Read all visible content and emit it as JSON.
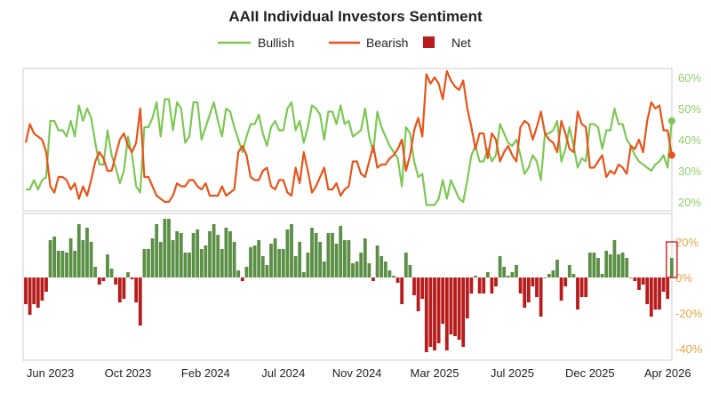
{
  "chart_data": {
    "type": "line+bar",
    "title": "AAII Individual Investors Sentiment",
    "legend": [
      "Bullish",
      "Bearish",
      "Net"
    ],
    "legend_placement": "top-center",
    "colors": {
      "bullish": "#7dc855",
      "bearish": "#e8541a",
      "net_pos": "#5b8f46",
      "net_neg": "#b71c1c",
      "highlight": "#d62828"
    },
    "x_ticks": [
      {
        "label": "Jun 2023",
        "week": 6
      },
      {
        "label": "Oct 2023",
        "week": 25
      },
      {
        "label": "Feb 2024",
        "week": 44
      },
      {
        "label": "Jul 2024",
        "week": 63
      },
      {
        "label": "Nov 2024",
        "week": 81
      },
      {
        "label": "Mar 2025",
        "week": 100
      },
      {
        "label": "Jul 2025",
        "week": 119
      },
      {
        "label": "Dec 2025",
        "week": 138
      },
      {
        "label": "Apr 2026",
        "week": 157
      }
    ],
    "top_panel": {
      "ylim": [
        18,
        65
      ],
      "y_ticks": [
        "20%",
        "30%",
        "40%",
        "50%",
        "60%"
      ],
      "y_values": [
        20,
        30,
        40,
        50,
        60
      ]
    },
    "bottom_panel": {
      "ylim": [
        -45,
        32
      ],
      "y_ticks": [
        "20%",
        "0%",
        "-20%",
        "-40%"
      ],
      "y_values": [
        20,
        0,
        -20,
        -40
      ]
    },
    "bullish": [
      24,
      24,
      27,
      24,
      27,
      28,
      46,
      46,
      43,
      43,
      41,
      46,
      41,
      51,
      46,
      50,
      47,
      39,
      32,
      32,
      43,
      35,
      31,
      26,
      30,
      41,
      35,
      25,
      23,
      44,
      44,
      47,
      52,
      41,
      53,
      53,
      43,
      52,
      50,
      39,
      41,
      52,
      52,
      40,
      44,
      48,
      52,
      46,
      41,
      50,
      49,
      44,
      40,
      36,
      41,
      45,
      45,
      48,
      42,
      38,
      44,
      46,
      43,
      43,
      50,
      52,
      43,
      46,
      39,
      44,
      51,
      50,
      48,
      40,
      49,
      49,
      45,
      51,
      45,
      46,
      41,
      42,
      43,
      50,
      41,
      36,
      49,
      44,
      41,
      38,
      36,
      34,
      25,
      44,
      42,
      33,
      28,
      29,
      19,
      19,
      19,
      21,
      27,
      21,
      27,
      24,
      21,
      20,
      27,
      35,
      38,
      33,
      33,
      37,
      33,
      35,
      45,
      42,
      39,
      38,
      40,
      35,
      29,
      31,
      35,
      33,
      27,
      42,
      42,
      43,
      46,
      33,
      37,
      44,
      38,
      31,
      34,
      33,
      45,
      45,
      44,
      37,
      43,
      43,
      50,
      45,
      45,
      40,
      38,
      35,
      33,
      32,
      31,
      30,
      32,
      33,
      35,
      31,
      46
    ],
    "bearish": [
      39,
      45,
      42,
      41,
      40,
      36,
      25,
      23,
      28,
      28,
      27,
      24,
      26,
      21,
      25,
      22,
      27,
      33,
      36,
      34,
      30,
      30,
      35,
      40,
      42,
      38,
      36,
      39,
      50,
      28,
      28,
      25,
      22,
      21,
      20,
      20,
      22,
      26,
      25,
      25,
      27,
      27,
      25,
      24,
      26,
      22,
      22,
      22,
      25,
      22,
      23,
      24,
      36,
      38,
      35,
      28,
      27,
      27,
      30,
      31,
      25,
      24,
      27,
      27,
      23,
      22,
      31,
      26,
      36,
      30,
      23,
      25,
      28,
      31,
      24,
      24,
      26,
      22,
      24,
      25,
      33,
      33,
      29,
      28,
      33,
      38,
      31,
      32,
      32,
      34,
      35,
      37,
      40,
      30,
      35,
      43,
      47,
      41,
      61,
      58,
      60,
      58,
      53,
      62,
      59,
      57,
      56,
      59,
      50,
      44,
      37,
      42,
      42,
      34,
      42,
      40,
      33,
      36,
      38,
      35,
      33,
      44,
      46,
      45,
      40,
      44,
      49,
      42,
      40,
      39,
      36,
      46,
      42,
      37,
      36,
      49,
      45,
      44,
      31,
      31,
      33,
      35,
      28,
      30,
      29,
      32,
      31,
      29,
      38,
      37,
      40,
      36,
      46,
      52,
      50,
      51,
      43,
      43,
      35
    ],
    "net": [
      -15,
      -21,
      -15,
      -17,
      -13,
      -8,
      21,
      23,
      15,
      15,
      14,
      22,
      15,
      30,
      21,
      28,
      20,
      6,
      -4,
      -2,
      13,
      5,
      -4,
      -14,
      -12,
      3,
      -1,
      -14,
      -27,
      16,
      16,
      22,
      30,
      20,
      33,
      33,
      21,
      26,
      25,
      14,
      14,
      25,
      27,
      16,
      18,
      26,
      30,
      24,
      16,
      28,
      26,
      20,
      4,
      -2,
      6,
      17,
      18,
      21,
      12,
      7,
      19,
      22,
      16,
      16,
      27,
      30,
      12,
      20,
      3,
      14,
      28,
      25,
      20,
      9,
      25,
      25,
      19,
      29,
      21,
      21,
      8,
      9,
      14,
      22,
      8,
      -2,
      18,
      12,
      9,
      4,
      1,
      -3,
      -15,
      14,
      7,
      -10,
      -19,
      -12,
      -42,
      -39,
      -41,
      -37,
      -26,
      -41,
      -32,
      -33,
      -35,
      -39,
      -23,
      -9,
      1,
      -9,
      -9,
      3,
      -9,
      -5,
      12,
      6,
      1,
      3,
      7,
      -9,
      -17,
      -14,
      -5,
      -11,
      -22,
      0,
      2,
      4,
      10,
      -13,
      -5,
      7,
      2,
      -18,
      -11,
      -11,
      14,
      14,
      11,
      2,
      15,
      13,
      21,
      13,
      14,
      11,
      0,
      -2,
      -7,
      -4,
      -15,
      -22,
      -18,
      -18,
      -8,
      -12,
      11
    ]
  }
}
